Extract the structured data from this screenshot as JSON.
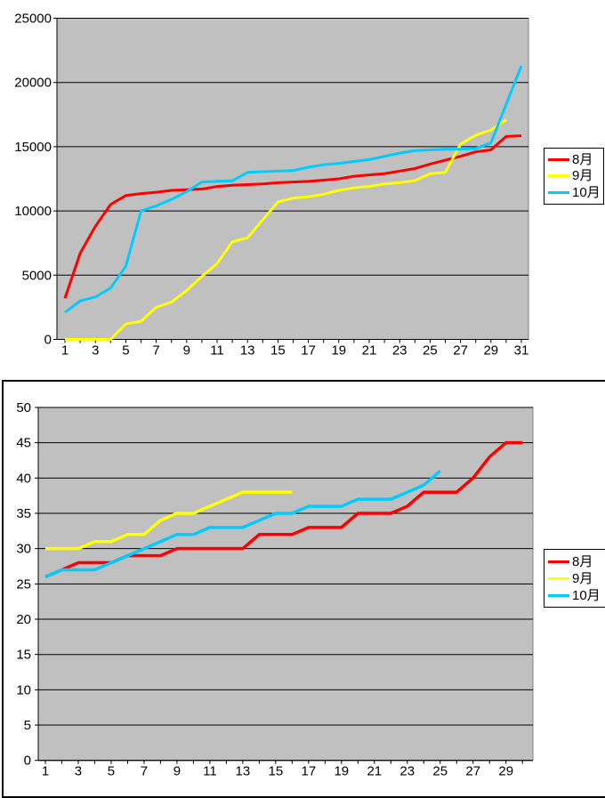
{
  "page": {
    "background": "#FFFFFF",
    "plot_background": "#C0C0C0"
  },
  "chart_data": [
    {
      "type": "line",
      "id": "top-chart",
      "title": "",
      "xlabel": "",
      "ylabel": "",
      "ylim": [
        0,
        25000
      ],
      "y_tick_labels": [
        "0",
        "5000",
        "10000",
        "15000",
        "20000",
        "25000"
      ],
      "categories": 31,
      "x_tick_labels": [
        "1",
        "3",
        "5",
        "7",
        "9",
        "11",
        "13",
        "15",
        "17",
        "19",
        "21",
        "23",
        "25",
        "27",
        "29",
        "31"
      ],
      "grid": true,
      "plot_bg": "#C0C0C0",
      "legend_position": "right",
      "series": [
        {
          "name": "8月",
          "color": "#FF0000",
          "values": [
            3200,
            6700,
            8800,
            10500,
            11200,
            11350,
            11450,
            11600,
            11650,
            11700,
            11900,
            12000,
            12050,
            12100,
            12200,
            12250,
            12300,
            12400,
            12500,
            12700,
            12800,
            12900,
            13100,
            13300,
            13650,
            13950,
            14250,
            14600,
            14750,
            15800,
            15850
          ]
        },
        {
          "name": "9月",
          "color": "#FFFF00",
          "values": [
            0,
            0,
            0,
            0,
            1200,
            1400,
            2500,
            2900,
            3800,
            4900,
            5900,
            7600,
            7900,
            9300,
            10700,
            11000,
            11100,
            11300,
            11600,
            11800,
            11900,
            12100,
            12200,
            12350,
            12900,
            13000,
            15200,
            15900,
            16300,
            17100
          ]
        },
        {
          "name": "10月",
          "color": "#00CCFF",
          "values": [
            2100,
            3000,
            3300,
            4000,
            5700,
            10000,
            10400,
            10900,
            11500,
            12250,
            12300,
            12350,
            13000,
            13050,
            13100,
            13150,
            13400,
            13600,
            13700,
            13850,
            14000,
            14250,
            14500,
            14700,
            14750,
            14800,
            14800,
            14850,
            15300,
            18300,
            21300
          ]
        }
      ]
    },
    {
      "type": "line",
      "id": "bottom-chart",
      "title": "",
      "xlabel": "",
      "ylabel": "",
      "ylim": [
        0,
        50
      ],
      "y_tick_labels": [
        "0",
        "5",
        "10",
        "15",
        "20",
        "25",
        "30",
        "35",
        "40",
        "45",
        "50"
      ],
      "categories": 30,
      "x_tick_labels": [
        "1",
        "3",
        "5",
        "7",
        "9",
        "11",
        "13",
        "15",
        "17",
        "19",
        "21",
        "23",
        "25",
        "27",
        "29"
      ],
      "grid": true,
      "plot_bg": "#C0C0C0",
      "legend_position": "right",
      "series": [
        {
          "name": "8月",
          "color": "#FF0000",
          "values": [
            26,
            27,
            28,
            28,
            28,
            29,
            29,
            29,
            30,
            30,
            30,
            30,
            30,
            32,
            32,
            32,
            33,
            33,
            33,
            35,
            35,
            35,
            36,
            38,
            38,
            38,
            40,
            43,
            45,
            45
          ]
        },
        {
          "name": "9月",
          "color": "#FFFF00",
          "values": [
            30,
            30,
            30,
            31,
            31,
            32,
            32,
            34,
            35,
            35,
            36,
            37,
            38,
            38,
            38,
            38
          ]
        },
        {
          "name": "10月",
          "color": "#00CCFF",
          "values": [
            26,
            27,
            27,
            27,
            28,
            29,
            30,
            31,
            32,
            32,
            33,
            33,
            33,
            34,
            35,
            35,
            36,
            36,
            36,
            37,
            37,
            37,
            38,
            39,
            41
          ]
        }
      ]
    }
  ]
}
